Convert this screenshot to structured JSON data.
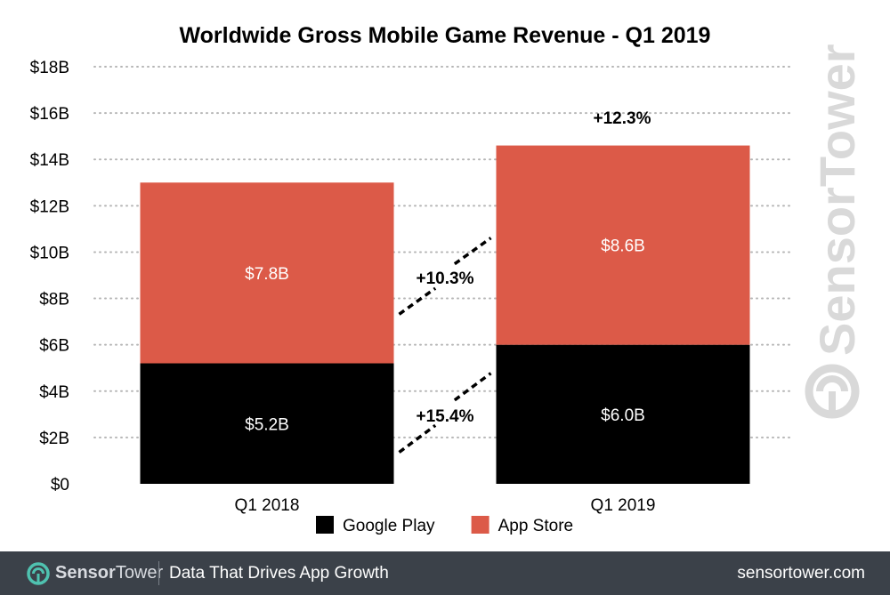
{
  "chart_data": {
    "type": "bar",
    "stacked": true,
    "title": "Worldwide Gross Mobile Game Revenue - Q1 2019",
    "categories": [
      "Q1 2018",
      "Q1 2019"
    ],
    "series": [
      {
        "name": "Google Play",
        "values": [
          5.2,
          6.0
        ],
        "labels": [
          "$5.2B",
          "$6.0B"
        ],
        "color": "#000000"
      },
      {
        "name": "App Store",
        "values": [
          7.8,
          8.6
        ],
        "labels": [
          "$7.8B",
          "$8.6B"
        ],
        "color": "#dc5a48"
      }
    ],
    "yticks": [
      "$0",
      "$2B",
      "$4B",
      "$6B",
      "$8B",
      "$10B",
      "$12B",
      "$14B",
      "$16B",
      "$18B"
    ],
    "ylim": [
      0,
      18
    ],
    "grid": true,
    "legend": "bottom",
    "annotations": {
      "google_play_growth": "+15.4%",
      "app_store_growth": "+10.3%",
      "total_growth": "+12.3%"
    }
  },
  "watermark": {
    "text": "SensorTower"
  },
  "footer": {
    "brand_left": "Sensor",
    "brand_right": "Tower",
    "tagline": "Data That Drives App Growth",
    "site": "sensortower.com",
    "logo_icon": "sensortower-logo-icon"
  }
}
